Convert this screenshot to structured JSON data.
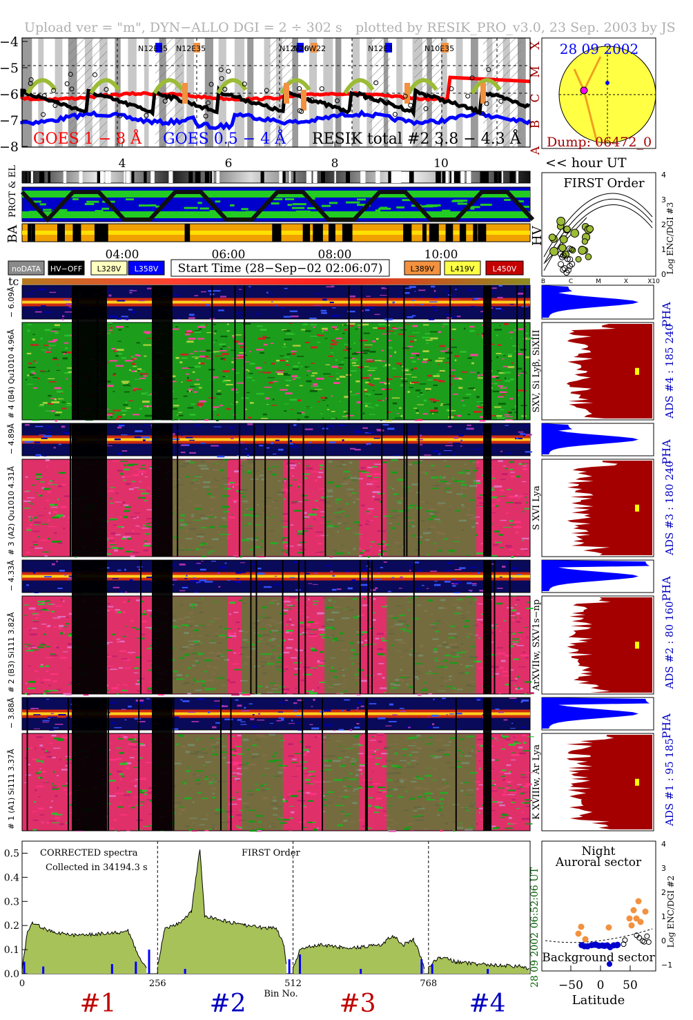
{
  "header": {
    "left": "Upload ver = \"m\", DYN−ALLO DGI =   2 ÷ 302 s",
    "right": "plotted by RESIK_PRO_v3.0, 23 Sep. 2003 by JS"
  },
  "colors": {
    "goes_long": "#ff0000",
    "goes_short": "#0000ff",
    "resik": "#000000",
    "resik_fit": "#9cbb36",
    "ar_orange": "#f2913f",
    "ads_fill": "#a40000",
    "pha_fill": "#0000ff",
    "spectrum_fill": "#a8c25a",
    "sun": "#ffff44",
    "hv_orange": "#f0a000",
    "hv_yellow": "#ffe000"
  },
  "goes_panel": {
    "title": "RESIK total #2  3.8 − 4.3 Å",
    "goes_long_label": "GOES 1 − 8 Å",
    "goes_short_label": "GOES 0.5 − 4 Å",
    "x_label": "<< hour UT",
    "y_ticks": [
      "−4",
      "−5",
      "−6",
      "−7",
      "−8"
    ],
    "x_ticks": [
      "4",
      "6",
      "8",
      "10"
    ],
    "class_labels": [
      "X",
      "M",
      "C",
      "B",
      "A"
    ],
    "active_regions": [
      "N12E35",
      "N12E35",
      "N12E30",
      "N26W22",
      "N12E3",
      "N10E35"
    ]
  },
  "sun_panel": {
    "date": "28 09 2002",
    "dump": "Dump: 06472_0"
  },
  "status_panel": {
    "prot_label": "PROT & EL",
    "ba_label": "BA",
    "hv_label": "HV",
    "time_ticks": [
      "04:00",
      "06:00",
      "08:00",
      "10:00"
    ],
    "legend": [
      {
        "label": "noDATA",
        "color": "#8a8a8a",
        "text_color": "#ffffff"
      },
      {
        "label": "HV−OFF",
        "color": "#000000",
        "text_color": "#ffffff"
      },
      {
        "label": "L328V",
        "color": "#ffffc0",
        "text_color": "#000000"
      },
      {
        "label": "L358V",
        "color": "#0000ff",
        "text_color": "#ffffff"
      },
      {
        "label": "L389V",
        "color": "#f2913f",
        "text_color": "#000000"
      },
      {
        "label": "L419V",
        "color": "#ffff44",
        "text_color": "#000000"
      },
      {
        "label": "L450V",
        "color": "#c40000",
        "text_color": "#ffffff"
      }
    ],
    "start_time": "Start Time (28−Sep−02 02:06:07)",
    "tc_label": "tc"
  },
  "first_order_panel": {
    "title": "FIRST Order",
    "y_label": "Log ENC/DGI #3",
    "y_ticks": [
      "4",
      "3",
      "2",
      "1",
      "0"
    ],
    "x_ticks": [
      "B",
      "C",
      "M",
      "X",
      "X10"
    ]
  },
  "channels": [
    {
      "id": "4",
      "pha_label": "− 6.09Å",
      "main_label": "# 4 (B4) Qu1010 4.96Å",
      "ads": "ADS #4 :  185 240",
      "lines": "SXV, Si Lyβ, SiXIII"
    },
    {
      "id": "3",
      "pha_label": "− 4.89Å",
      "main_label": "# 3 (A2) Qu1010  4.31Å",
      "ads": "ADS #3 :  180 240",
      "lines": "S XVI Lya"
    },
    {
      "id": "2",
      "pha_label": "− 4.33Å",
      "main_label": "# 2 (B3) Si111  3.82Å",
      "ads": "ADS #2 :   80 160",
      "lines": "ArXVIIw, SXV1s−np"
    },
    {
      "id": "1",
      "pha_label": "− 3.88Å",
      "main_label": "# 1 (A1) Si111  3.37Å",
      "ads": "ADS #1 :   95 185",
      "lines": "K XVIIIw, Ar Lya"
    }
  ],
  "pha_label": "PHA",
  "spectrum_panel": {
    "note1": "CORRECTED spectra",
    "note2": "Collected in 34194.3 s",
    "order": "FIRST Order",
    "x_label": "Bin No.",
    "x_ticks": [
      "0",
      "256",
      "512",
      "768"
    ],
    "y_ticks": [
      "0.0",
      "0.1",
      "0.2",
      "0.3",
      "0.4",
      "0.5"
    ],
    "time_stamp": "06:52:06 UT",
    "date_stamp": "28 09 2002",
    "channel_labels": [
      "#1",
      "#2",
      "#3",
      "#4"
    ],
    "channel_colors": [
      "#c00000",
      "#0000c0",
      "#c00000",
      "#0000c0"
    ]
  },
  "latitude_panel": {
    "title1": "Night",
    "title2": "Auroral sector",
    "bottom": "Background sector",
    "x_label": "Latitude",
    "x_ticks": [
      "−50",
      "0",
      "50"
    ],
    "y_label": "Log ENC/DGI #2",
    "y_ticks": [
      "4",
      "3",
      "2",
      "1",
      "0",
      "−1"
    ]
  },
  "chart_data": {
    "type": "line",
    "title": "RESIK total #2  3.8 − 4.3 Å",
    "xlabel": "Bin No.",
    "ylabel": "",
    "xlim": [
      0,
      960
    ],
    "ylim": [
      0,
      0.55
    ],
    "x_ticks": [
      0,
      256,
      512,
      768
    ],
    "segments": [
      {
        "name": "#1",
        "bins": [
          0,
          10,
          20,
          40,
          60,
          100,
          140,
          180,
          200,
          215,
          235
        ],
        "values": [
          0.02,
          0.17,
          0.21,
          0.19,
          0.17,
          0.16,
          0.165,
          0.17,
          0.18,
          0.1,
          0.02
        ]
      },
      {
        "name": "#2",
        "bins": [
          256,
          270,
          300,
          320,
          330,
          336,
          345,
          380,
          420,
          460,
          480,
          495,
          500
        ],
        "values": [
          0.03,
          0.19,
          0.21,
          0.26,
          0.42,
          0.52,
          0.24,
          0.22,
          0.2,
          0.19,
          0.19,
          0.12,
          0.02
        ]
      },
      {
        "name": "#3",
        "bins": [
          512,
          525,
          560,
          600,
          640,
          680,
          700,
          720,
          740,
          750,
          760
        ],
        "values": [
          0.02,
          0.1,
          0.12,
          0.11,
          0.11,
          0.12,
          0.16,
          0.12,
          0.14,
          0.09,
          0.02
        ]
      },
      {
        "name": "#4",
        "bins": [
          768,
          790,
          820,
          860,
          900,
          940,
          958
        ],
        "values": [
          0.03,
          0.07,
          0.05,
          0.04,
          0.035,
          0.03,
          0.02
        ]
      }
    ]
  }
}
